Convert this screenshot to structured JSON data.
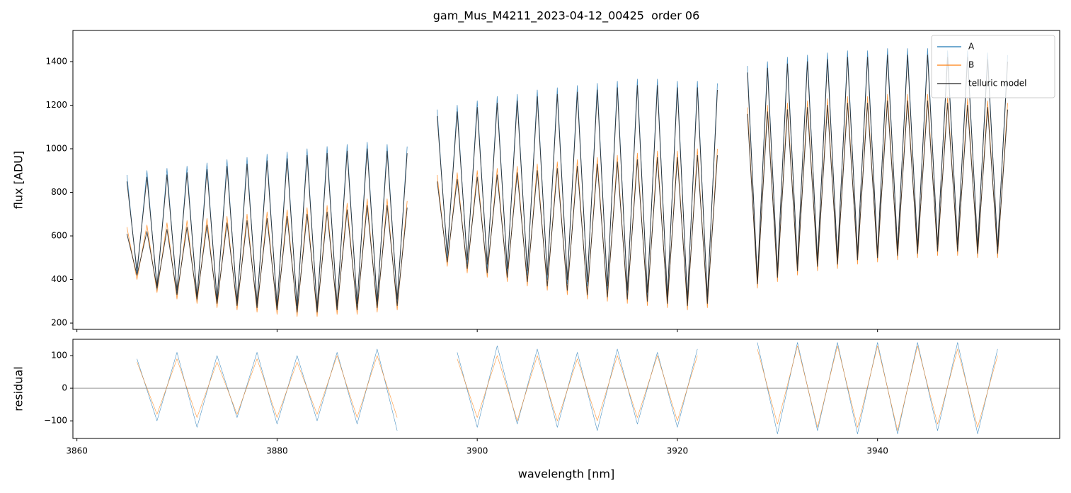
{
  "chart_data": [
    {
      "type": "line",
      "title": "gam_Mus_M4211_2023-04-12_00425  order 06",
      "y_label": "flux [ADU]",
      "xlim": [
        3859.6,
        3958.2
      ],
      "ylim": [
        171,
        1543
      ],
      "yticks": [
        200,
        400,
        600,
        800,
        1000,
        1200,
        1400
      ],
      "legend": "upper right",
      "x": [
        3865,
        3866,
        3867,
        3868,
        3869,
        3870,
        3871,
        3872,
        3873,
        3874,
        3875,
        3876,
        3877,
        3878,
        3879,
        3880,
        3881,
        3882,
        3883,
        3884,
        3885,
        3886,
        3887,
        3888,
        3889,
        3890,
        3891,
        3892,
        3893,
        3894,
        3895,
        3896,
        3897,
        3898,
        3899,
        3900,
        3901,
        3902,
        3903,
        3904,
        3905,
        3906,
        3907,
        3908,
        3909,
        3910,
        3911,
        3912,
        3913,
        3914,
        3915,
        3916,
        3917,
        3918,
        3919,
        3920,
        3921,
        3922,
        3923,
        3924,
        3925,
        3926,
        3927,
        3928,
        3929,
        3930,
        3931,
        3932,
        3933,
        3934,
        3935,
        3936,
        3937,
        3938,
        3939,
        3940,
        3941,
        3942,
        3943,
        3944,
        3945,
        3946,
        3947,
        3948,
        3949,
        3950,
        3951,
        3952,
        3953
      ],
      "series": [
        {
          "name": "A",
          "color": "#1f77b4",
          "values": [
            880,
            420,
            900,
            350,
            910,
            330,
            920,
            300,
            935,
            290,
            950,
            280,
            960,
            270,
            975,
            260,
            985,
            260,
            1000,
            250,
            1010,
            260,
            1020,
            270,
            1030,
            280,
            1020,
            290,
            1010,
            null,
            null,
            1180,
            500,
            1200,
            470,
            1220,
            450,
            1240,
            430,
            1250,
            420,
            1270,
            400,
            1280,
            380,
            1290,
            370,
            1300,
            350,
            1310,
            330,
            1320,
            320,
            1320,
            300,
            1310,
            290,
            1310,
            300,
            1300,
            null,
            null,
            1380,
            380,
            1400,
            420,
            1420,
            450,
            1430,
            470,
            1440,
            480,
            1450,
            500,
            1450,
            500,
            1460,
            520,
            1460,
            530,
            1460,
            540,
            1450,
            540,
            1450,
            530,
            1440,
            530,
            1430
          ]
        },
        {
          "name": "B",
          "color": "#ff7f0e",
          "values": [
            640,
            400,
            650,
            340,
            660,
            310,
            670,
            290,
            680,
            270,
            690,
            260,
            700,
            250,
            710,
            240,
            720,
            230,
            730,
            230,
            740,
            240,
            750,
            240,
            770,
            250,
            770,
            260,
            760,
            null,
            null,
            880,
            460,
            890,
            430,
            900,
            410,
            910,
            390,
            920,
            370,
            930,
            350,
            940,
            330,
            950,
            310,
            960,
            300,
            970,
            290,
            980,
            280,
            990,
            270,
            990,
            260,
            1000,
            270,
            1000,
            null,
            null,
            1190,
            360,
            1200,
            390,
            1210,
            420,
            1220,
            440,
            1230,
            450,
            1240,
            470,
            1240,
            480,
            1250,
            490,
            1250,
            500,
            1250,
            510,
            1240,
            510,
            1230,
            500,
            1220,
            500,
            1210
          ]
        },
        {
          "name": "telluric model",
          "color": "#222222",
          "values": [
            850,
            440,
            870,
            370,
            880,
            350,
            890,
            320,
            905,
            310,
            920,
            300,
            930,
            290,
            945,
            280,
            955,
            280,
            970,
            270,
            980,
            280,
            990,
            290,
            1000,
            300,
            990,
            310,
            980,
            null,
            null,
            1150,
            520,
            1170,
            490,
            1190,
            470,
            1210,
            450,
            1220,
            440,
            1240,
            420,
            1250,
            400,
            1260,
            390,
            1270,
            370,
            1280,
            350,
            1290,
            340,
            1290,
            320,
            1280,
            310,
            1280,
            320,
            1270,
            null,
            null,
            1350,
            400,
            1370,
            440,
            1390,
            470,
            1400,
            490,
            1410,
            500,
            1420,
            520,
            1420,
            520,
            1430,
            540,
            1430,
            550,
            1430,
            560,
            1420,
            560,
            1420,
            550,
            1410,
            550,
            1400
          ]
        },
        {
          "color": "#222222",
          "values": [
            610,
            420,
            620,
            360,
            630,
            330,
            640,
            310,
            650,
            290,
            660,
            280,
            670,
            270,
            680,
            260,
            690,
            250,
            700,
            250,
            710,
            260,
            720,
            260,
            740,
            270,
            740,
            280,
            730,
            null,
            null,
            850,
            480,
            860,
            450,
            870,
            430,
            880,
            410,
            890,
            390,
            900,
            370,
            910,
            350,
            920,
            330,
            930,
            320,
            940,
            310,
            950,
            300,
            960,
            290,
            960,
            280,
            970,
            290,
            970,
            null,
            null,
            1160,
            380,
            1170,
            410,
            1180,
            440,
            1190,
            460,
            1200,
            470,
            1210,
            490,
            1210,
            500,
            1220,
            510,
            1220,
            520,
            1220,
            530,
            1210,
            530,
            1200,
            520,
            1190,
            520,
            1180
          ]
        }
      ]
    },
    {
      "type": "line",
      "x_label": "wavelength [nm]",
      "y_label": "residual",
      "xlim": [
        3859.6,
        3958.2
      ],
      "xticks": [
        3860,
        3880,
        3900,
        3920,
        3940
      ],
      "ylim": [
        -154,
        150
      ],
      "yticks": [
        {
          "value": -100,
          "label": "−100"
        },
        0,
        100
      ],
      "reference_line": 0,
      "x": [
        3866,
        3868,
        3870,
        3872,
        3874,
        3876,
        3878,
        3880,
        3882,
        3884,
        3886,
        3888,
        3890,
        3892,
        3894,
        3896,
        3898,
        3900,
        3902,
        3904,
        3906,
        3908,
        3910,
        3912,
        3914,
        3916,
        3918,
        3920,
        3922,
        3924,
        3926,
        3928,
        3930,
        3932,
        3934,
        3936,
        3938,
        3940,
        3942,
        3944,
        3946,
        3948,
        3950,
        3952
      ],
      "series": [
        {
          "color": "#1f77b4",
          "values": [
            90,
            -100,
            110,
            -120,
            100,
            -90,
            110,
            -110,
            100,
            -100,
            110,
            -110,
            120,
            -130,
            null,
            null,
            110,
            -120,
            130,
            -110,
            120,
            -120,
            110,
            -130,
            120,
            -110,
            110,
            -120,
            120,
            null,
            null,
            140,
            -140,
            140,
            -130,
            140,
            -140,
            140,
            -140,
            140,
            -130,
            140,
            -140,
            120
          ]
        },
        {
          "color": "#ff7f0e",
          "values": [
            80,
            -80,
            90,
            -90,
            80,
            -80,
            90,
            -90,
            80,
            -80,
            100,
            -90,
            100,
            -90,
            null,
            null,
            90,
            -90,
            100,
            -100,
            100,
            -100,
            90,
            -100,
            100,
            -90,
            100,
            -100,
            100,
            null,
            null,
            120,
            -110,
            130,
            -120,
            130,
            -120,
            130,
            -130,
            130,
            -110,
            120,
            -120,
            100
          ]
        }
      ]
    }
  ]
}
